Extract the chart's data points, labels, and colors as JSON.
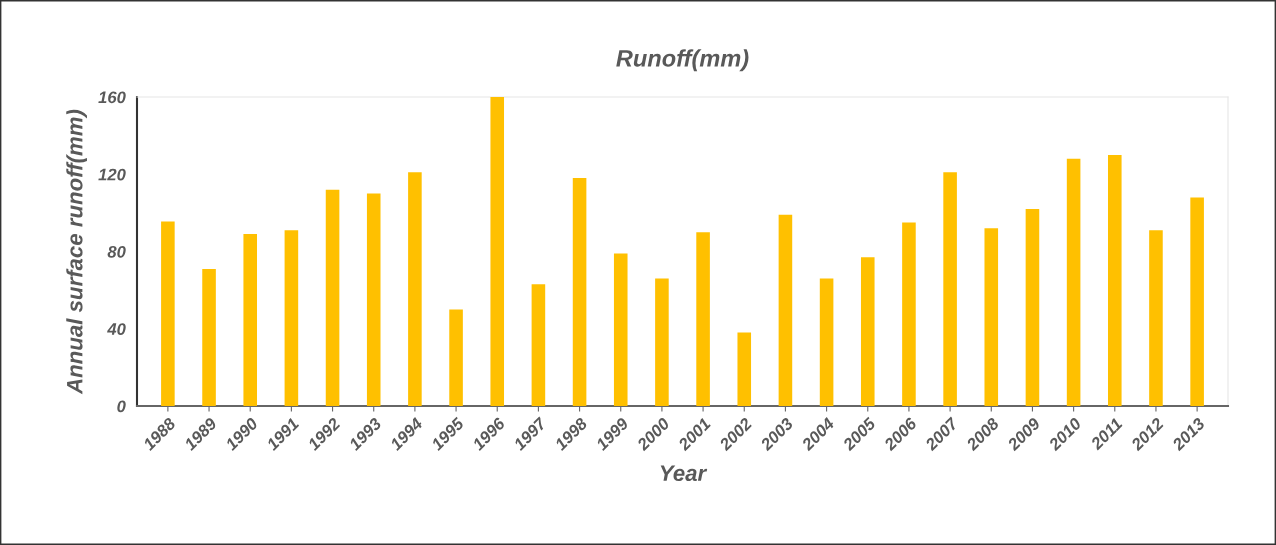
{
  "chart_data": {
    "type": "bar",
    "title": "Runoff(mm)",
    "xlabel": "Year",
    "ylabel": "Annual surface runoff(mm)",
    "categories": [
      "1988",
      "1989",
      "1990",
      "1991",
      "1992",
      "1993",
      "1994",
      "1995",
      "1996",
      "1997",
      "1998",
      "1999",
      "2000",
      "2001",
      "2002",
      "2003",
      "2004",
      "2005",
      "2006",
      "2007",
      "2008",
      "2009",
      "2010",
      "2011",
      "2012",
      "2013"
    ],
    "values": [
      95.5,
      71,
      89,
      91,
      112,
      110,
      121,
      50,
      160,
      63,
      118,
      79,
      66,
      90,
      38,
      99,
      66,
      77,
      95,
      121,
      92,
      102,
      128,
      130,
      91,
      108
    ],
    "color": "#ffc000",
    "ylim": [
      0,
      160
    ],
    "yticks": [
      0,
      40,
      80,
      120,
      160
    ],
    "grid": false,
    "legend": false
  }
}
